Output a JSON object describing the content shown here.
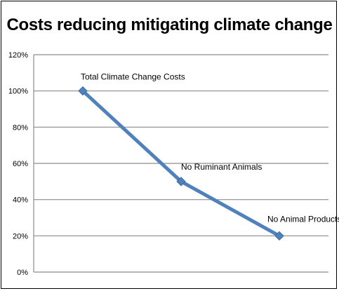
{
  "chart_data": {
    "type": "line",
    "title": "Costs reducing mitigating climate change",
    "xlabel": "",
    "ylabel": "",
    "ylim": [
      0,
      120
    ],
    "y_ticks": [
      "0%",
      "20%",
      "40%",
      "60%",
      "80%",
      "100%",
      "120%"
    ],
    "grid": true,
    "legend": "none",
    "series": [
      {
        "color": "#4f81bd",
        "points": [
          {
            "label": "Total Climate Change Costs",
            "value": 100
          },
          {
            "label": "No Ruminant Animals",
            "value": 50
          },
          {
            "label": "No Animal Products",
            "value": 20
          }
        ]
      }
    ]
  }
}
